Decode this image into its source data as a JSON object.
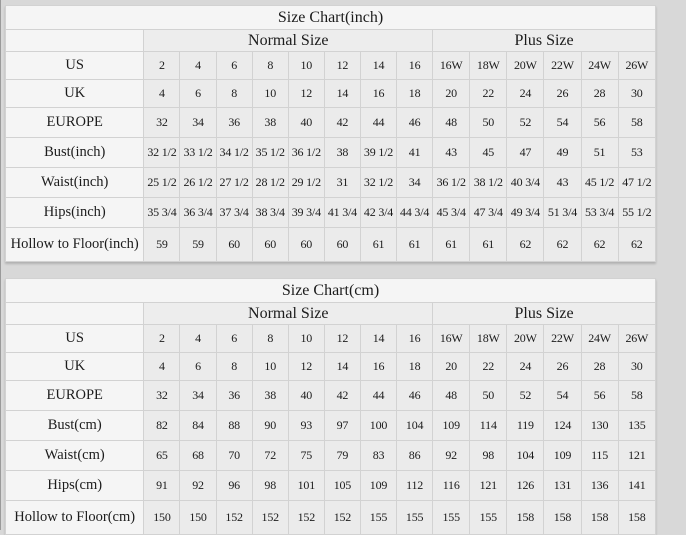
{
  "page": {
    "background": "#d8d8d8",
    "cell_background": "#ebebeb",
    "label_background": "#f5f5f5",
    "border_color": "#d2d2d2",
    "text_color": "#1c1c1c"
  },
  "chart_data": [
    {
      "type": "table",
      "title": "Size Chart(inch)",
      "column_groups": [
        {
          "label": "",
          "span": 1
        },
        {
          "label": "Normal Size",
          "span": 8
        },
        {
          "label": "Plus Size",
          "span": 6
        }
      ],
      "rows": [
        {
          "label": "US",
          "values": [
            "2",
            "4",
            "6",
            "8",
            "10",
            "12",
            "14",
            "16",
            "16W",
            "18W",
            "20W",
            "22W",
            "24W",
            "26W"
          ]
        },
        {
          "label": "UK",
          "values": [
            "4",
            "6",
            "8",
            "10",
            "12",
            "14",
            "16",
            "18",
            "20",
            "22",
            "24",
            "26",
            "28",
            "30"
          ]
        },
        {
          "label": "EUROPE",
          "values": [
            "32",
            "34",
            "36",
            "38",
            "40",
            "42",
            "44",
            "46",
            "48",
            "50",
            "52",
            "54",
            "56",
            "58"
          ]
        },
        {
          "label": "Bust(inch)",
          "values": [
            "32 1/2",
            "33 1/2",
            "34 1/2",
            "35 1/2",
            "36 1/2",
            "38",
            "39 1/2",
            "41",
            "43",
            "45",
            "47",
            "49",
            "51",
            "53"
          ]
        },
        {
          "label": "Waist(inch)",
          "values": [
            "25 1/2",
            "26 1/2",
            "27 1/2",
            "28 1/2",
            "29 1/2",
            "31",
            "32 1/2",
            "34",
            "36 1/2",
            "38 1/2",
            "40 3/4",
            "43",
            "45 1/2",
            "47 1/2"
          ]
        },
        {
          "label": "Hips(inch)",
          "values": [
            "35 3/4",
            "36 3/4",
            "37 3/4",
            "38 3/4",
            "39 3/4",
            "41 3/4",
            "42 3/4",
            "44 3/4",
            "45 3/4",
            "47 3/4",
            "49 3/4",
            "51 3/4",
            "53 3/4",
            "55 1/2"
          ]
        },
        {
          "label": "Hollow to Floor(inch)",
          "values": [
            "59",
            "59",
            "60",
            "60",
            "60",
            "60",
            "61",
            "61",
            "61",
            "61",
            "62",
            "62",
            "62",
            "62"
          ]
        }
      ]
    },
    {
      "type": "table",
      "title": "Size Chart(cm)",
      "column_groups": [
        {
          "label": "",
          "span": 1
        },
        {
          "label": "Normal Size",
          "span": 8
        },
        {
          "label": "Plus Size",
          "span": 6
        }
      ],
      "rows": [
        {
          "label": "US",
          "values": [
            "2",
            "4",
            "6",
            "8",
            "10",
            "12",
            "14",
            "16",
            "16W",
            "18W",
            "20W",
            "22W",
            "24W",
            "26W"
          ]
        },
        {
          "label": "UK",
          "values": [
            "4",
            "6",
            "8",
            "10",
            "12",
            "14",
            "16",
            "18",
            "20",
            "22",
            "24",
            "26",
            "28",
            "30"
          ]
        },
        {
          "label": "EUROPE",
          "values": [
            "32",
            "34",
            "36",
            "38",
            "40",
            "42",
            "44",
            "46",
            "48",
            "50",
            "52",
            "54",
            "56",
            "58"
          ]
        },
        {
          "label": "Bust(cm)",
          "values": [
            "82",
            "84",
            "88",
            "90",
            "93",
            "97",
            "100",
            "104",
            "109",
            "114",
            "119",
            "124",
            "130",
            "135"
          ]
        },
        {
          "label": "Waist(cm)",
          "values": [
            "65",
            "68",
            "70",
            "72",
            "75",
            "79",
            "83",
            "86",
            "92",
            "98",
            "104",
            "109",
            "115",
            "121"
          ]
        },
        {
          "label": "Hips(cm)",
          "values": [
            "91",
            "92",
            "96",
            "98",
            "101",
            "105",
            "109",
            "112",
            "116",
            "121",
            "126",
            "131",
            "136",
            "141"
          ]
        },
        {
          "label": "Hollow to Floor(cm)",
          "values": [
            "150",
            "150",
            "152",
            "152",
            "152",
            "152",
            "155",
            "155",
            "155",
            "155",
            "158",
            "158",
            "158",
            "158"
          ]
        }
      ]
    }
  ]
}
